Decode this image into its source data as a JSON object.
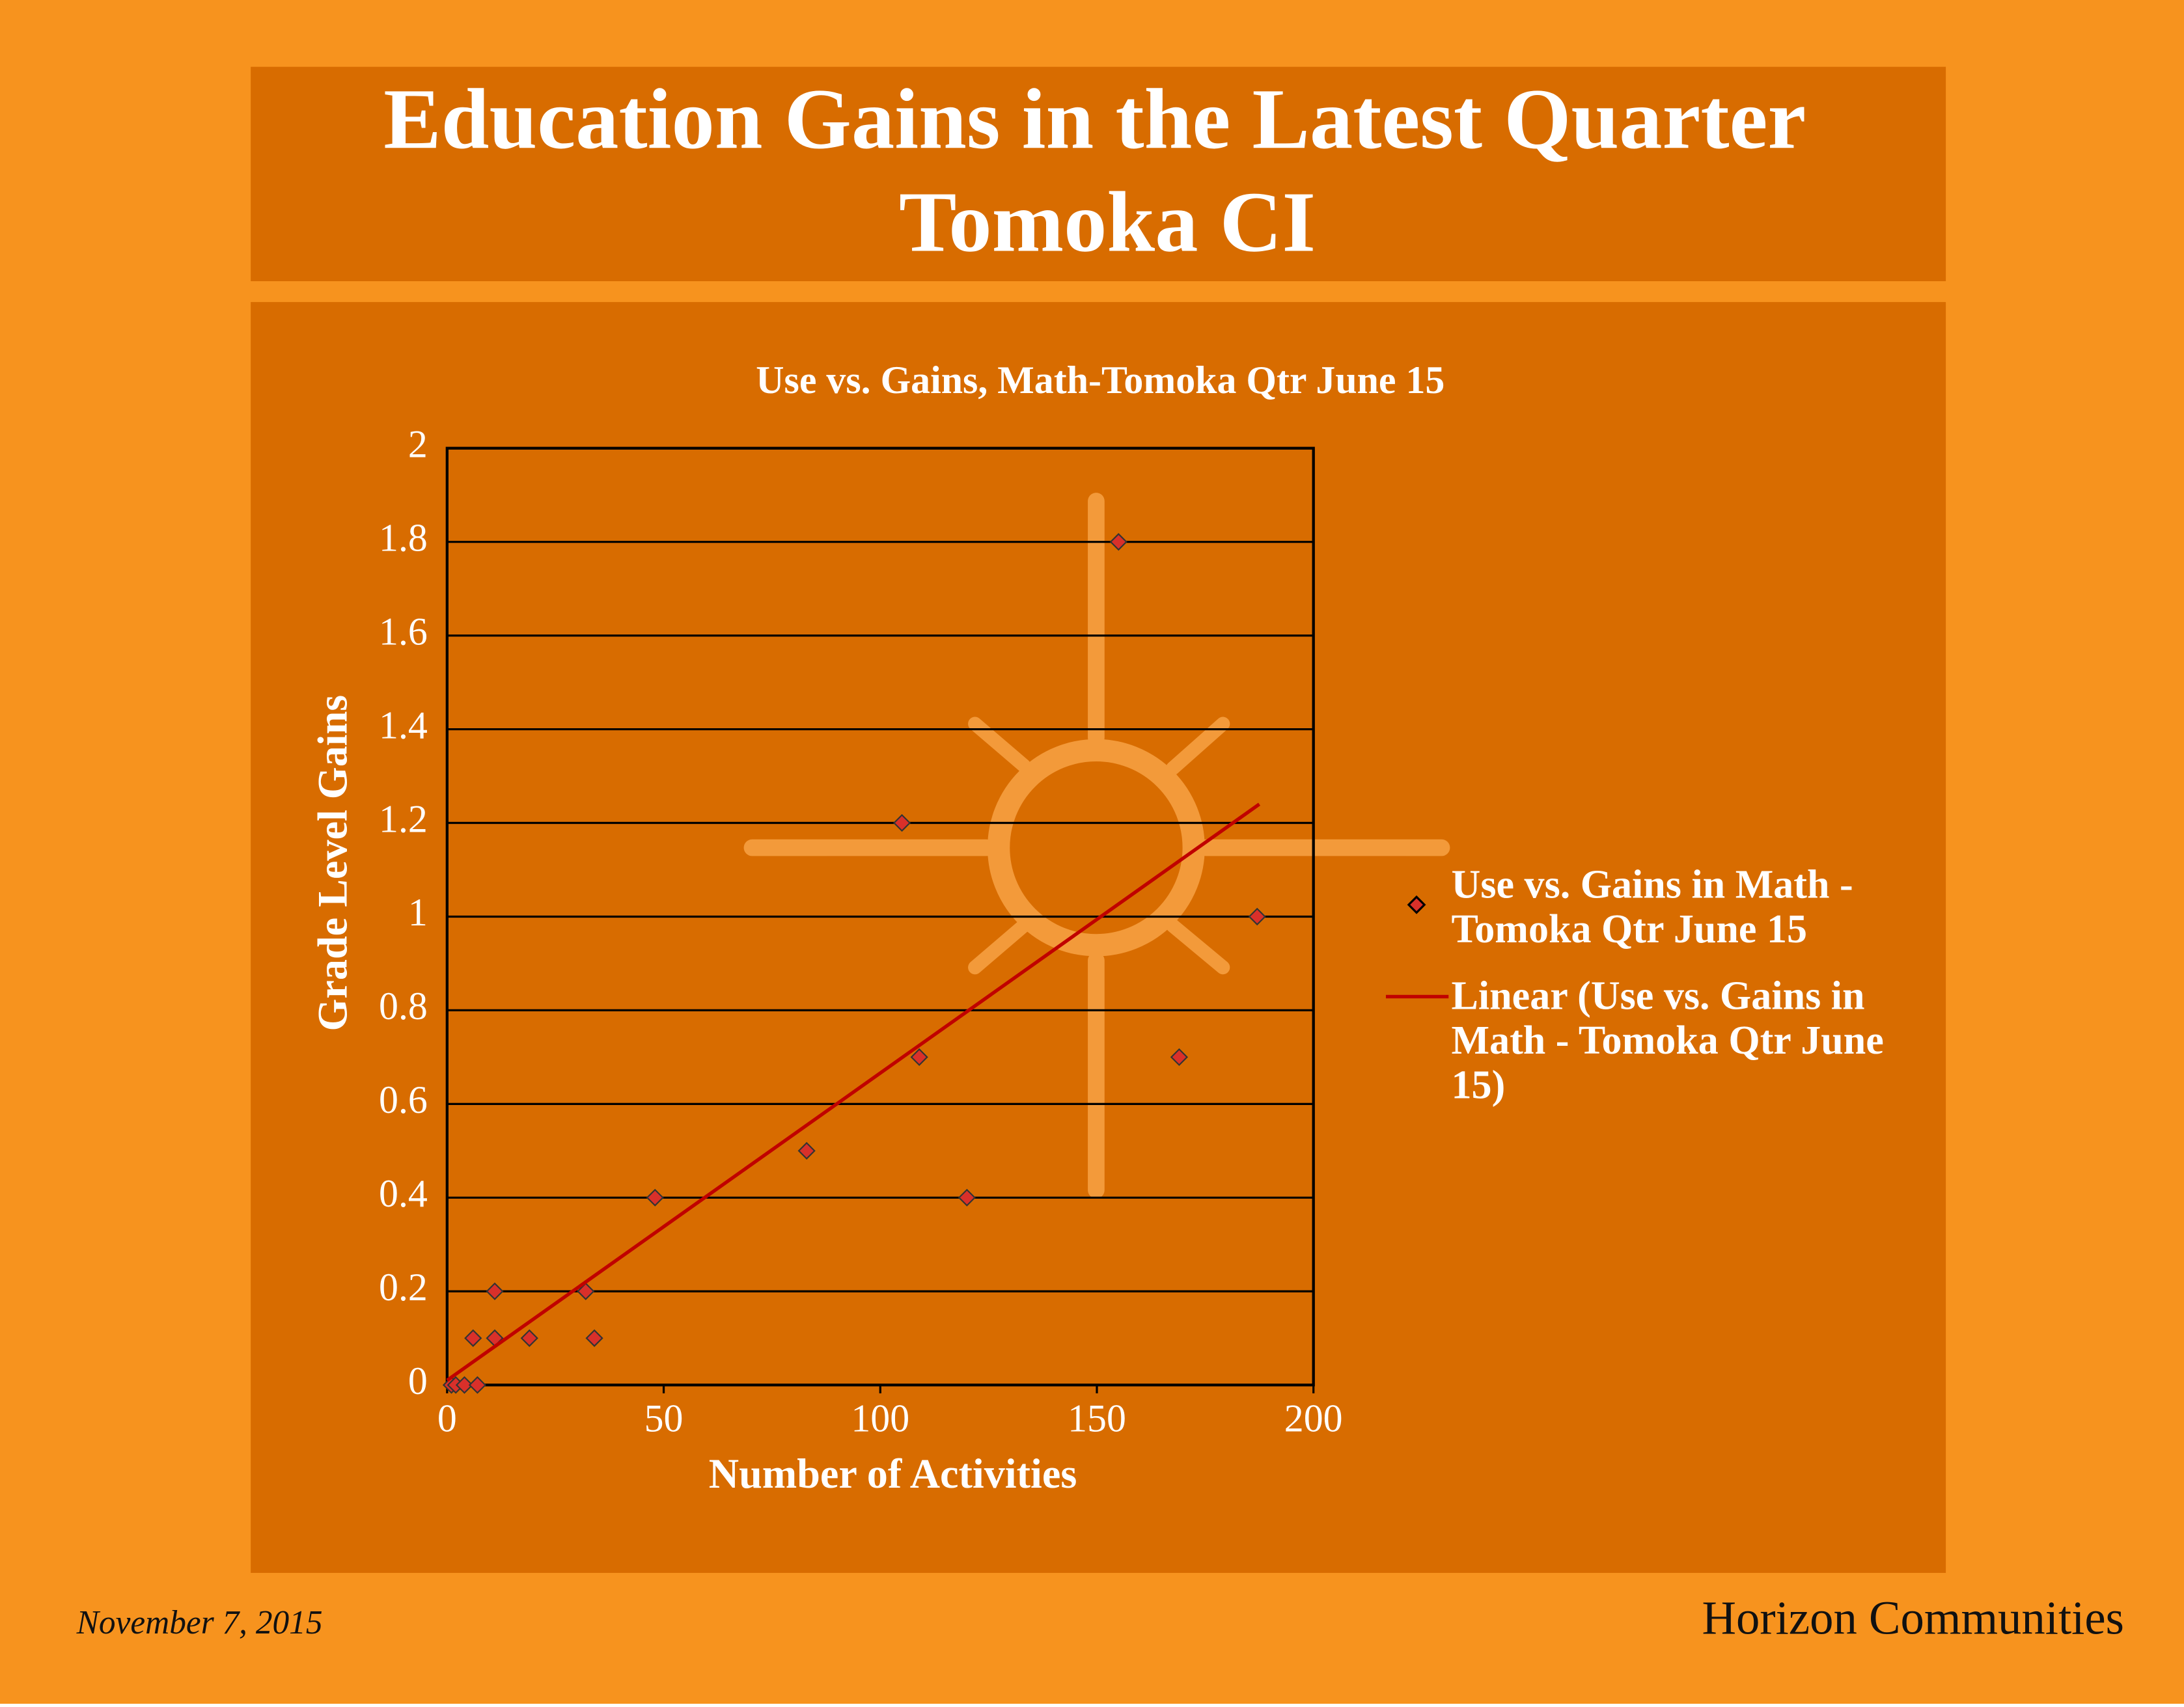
{
  "header": {
    "title": [
      "Education Gains in the Latest Quarter",
      "Tomoka CI"
    ]
  },
  "footer": {
    "date": "November 7, 2015",
    "brand": "Horizon Communities"
  },
  "chart_data": {
    "type": "scatter",
    "title": "Use vs. Gains, Math-Tomoka Qtr June 15",
    "x_label": "Number of Activities",
    "y_label": "Grade Level Gains",
    "xlim": [
      0,
      200
    ],
    "xticks": [
      0,
      50,
      100,
      150,
      200
    ],
    "ylim": [
      0,
      2
    ],
    "yticks": [
      0,
      0.2,
      0.4,
      0.6,
      0.8,
      1,
      1.2,
      1.4,
      1.6,
      1.8,
      2
    ],
    "grid": true,
    "series": [
      {
        "name": "Use vs. Gains in Math - Tomoka Qtr June 15",
        "type": "scatter",
        "color": "#d9302a",
        "x": [
          1,
          2,
          4,
          7,
          6,
          11,
          11,
          19,
          32,
          34,
          48,
          83,
          105,
          109,
          120,
          155,
          169,
          187
        ],
        "values": [
          0,
          0,
          0,
          0,
          0.1,
          0.2,
          0.1,
          0.1,
          0.2,
          0.1,
          0.4,
          0.5,
          1.2,
          0.7,
          0.4,
          1.8,
          0.7,
          1.0
        ]
      },
      {
        "name": "Linear (Use vs. Gains in Math - Tomoka Qtr June 15)",
        "type": "line",
        "color": "#c00000",
        "x": [
          0,
          187.5
        ],
        "values": [
          0.01,
          1.24
        ]
      }
    ]
  }
}
